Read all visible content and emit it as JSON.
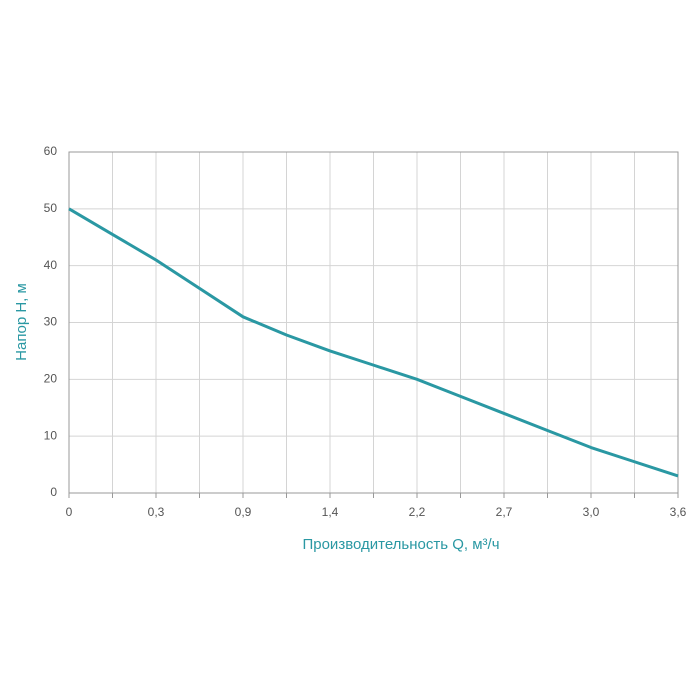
{
  "chart_data": {
    "type": "line",
    "x_label": "Производительность Q, м³/ч",
    "y_label": "Напор H, м",
    "categories": [
      "0",
      null,
      "0,3",
      null,
      "0,9",
      null,
      "1,4",
      null,
      "2,2",
      null,
      "2,7",
      null,
      "3,0",
      null,
      "3,6"
    ],
    "series": [
      {
        "color": "#2a98a3",
        "values": [
          50,
          45.5,
          41,
          36,
          31,
          27.8,
          25,
          22.5,
          20,
          17,
          14,
          11,
          8,
          5.5,
          3
        ]
      }
    ],
    "ylim": [
      0,
      60
    ],
    "yticks": [
      0,
      10,
      20,
      30,
      40,
      50,
      60
    ],
    "grid": true
  }
}
